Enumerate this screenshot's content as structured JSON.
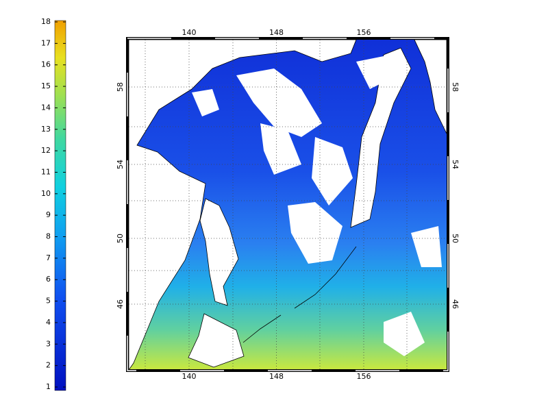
{
  "colorbar": {
    "ticks": [
      1,
      2,
      3,
      4,
      5,
      6,
      7,
      8,
      9,
      10,
      11,
      12,
      13,
      14,
      15,
      16,
      17,
      18
    ]
  },
  "map": {
    "lon_ticks": [
      140,
      148,
      156
    ],
    "lat_ticks": [
      46,
      50,
      54,
      58
    ]
  }
}
